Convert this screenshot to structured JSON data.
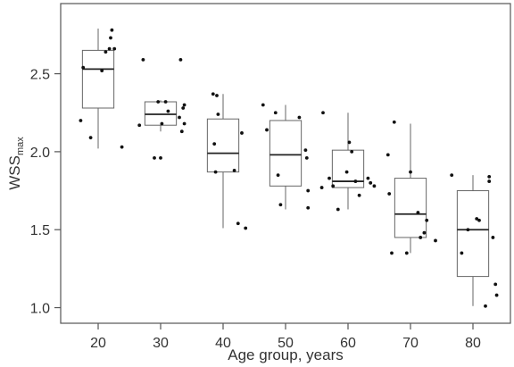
{
  "chart_data": {
    "type": "boxplot",
    "title": "",
    "xlabel": "Age group, years",
    "ylabel": {
      "main": "WSS",
      "subscript": "max"
    },
    "ylim": [
      0.9,
      2.95
    ],
    "xlim": [
      14,
      86
    ],
    "yticks": [
      1.0,
      1.5,
      2.0,
      2.5
    ],
    "ytick_labels": [
      "1.0",
      "1.5",
      "2.0",
      "2.5"
    ],
    "xticks": [
      20,
      30,
      40,
      50,
      60,
      70,
      80
    ],
    "xtick_labels": [
      "20",
      "30",
      "40",
      "50",
      "60",
      "70",
      "80"
    ],
    "grid": false,
    "groups": [
      {
        "x": 20,
        "q1": 2.28,
        "median": 2.53,
        "q3": 2.65,
        "whisker_low": 2.02,
        "whisker_high": 2.79,
        "points": [
          [
            17.2,
            2.2
          ],
          [
            17.6,
            2.54
          ],
          [
            18.8,
            2.09
          ],
          [
            20.6,
            2.52
          ],
          [
            21.2,
            2.64
          ],
          [
            21.8,
            2.66
          ],
          [
            22.0,
            2.73
          ],
          [
            22.2,
            2.78
          ],
          [
            22.6,
            2.66
          ],
          [
            23.8,
            2.03
          ]
        ]
      },
      {
        "x": 30,
        "q1": 2.17,
        "median": 2.24,
        "q3": 2.32,
        "whisker_low": 2.13,
        "whisker_high": 2.33,
        "points": [
          [
            26.6,
            2.17
          ],
          [
            27.2,
            2.59
          ],
          [
            29.0,
            1.96
          ],
          [
            29.6,
            2.32
          ],
          [
            30.0,
            1.96
          ],
          [
            30.2,
            2.18
          ],
          [
            30.8,
            2.32
          ],
          [
            31.2,
            2.26
          ],
          [
            33.0,
            2.22
          ],
          [
            33.2,
            2.59
          ],
          [
            33.4,
            2.13
          ],
          [
            33.6,
            2.28
          ],
          [
            33.8,
            2.18
          ],
          [
            33.8,
            2.3
          ]
        ]
      },
      {
        "x": 40,
        "q1": 1.87,
        "median": 1.99,
        "q3": 2.21,
        "whisker_low": 1.51,
        "whisker_high": 2.37,
        "points": [
          [
            38.4,
            2.37
          ],
          [
            38.6,
            2.05
          ],
          [
            38.8,
            1.87
          ],
          [
            39.0,
            2.36
          ],
          [
            39.2,
            2.24
          ],
          [
            41.8,
            1.88
          ],
          [
            42.4,
            1.54
          ],
          [
            43.0,
            2.12
          ],
          [
            43.6,
            1.51
          ]
        ]
      },
      {
        "x": 50,
        "q1": 1.78,
        "median": 1.98,
        "q3": 2.2,
        "whisker_low": 1.63,
        "whisker_high": 2.3,
        "points": [
          [
            46.4,
            2.3
          ],
          [
            47.0,
            2.14
          ],
          [
            48.4,
            2.25
          ],
          [
            48.8,
            1.85
          ],
          [
            49.2,
            1.66
          ],
          [
            52.2,
            2.22
          ],
          [
            53.2,
            2.01
          ],
          [
            53.4,
            1.96
          ],
          [
            53.6,
            1.75
          ],
          [
            53.6,
            1.64
          ]
        ]
      },
      {
        "x": 60,
        "q1": 1.77,
        "median": 1.81,
        "q3": 2.01,
        "whisker_low": 1.63,
        "whisker_high": 2.25,
        "points": [
          [
            55.8,
            1.77
          ],
          [
            56.0,
            2.25
          ],
          [
            57.0,
            1.83
          ],
          [
            57.6,
            1.78
          ],
          [
            58.4,
            1.63
          ],
          [
            59.8,
            1.87
          ],
          [
            60.2,
            2.06
          ],
          [
            60.6,
            2.0
          ],
          [
            61.2,
            1.81
          ],
          [
            61.8,
            1.72
          ],
          [
            63.2,
            1.83
          ],
          [
            63.6,
            1.8
          ],
          [
            64.2,
            1.78
          ]
        ]
      },
      {
        "x": 70,
        "q1": 1.45,
        "median": 1.6,
        "q3": 1.83,
        "whisker_low": 1.35,
        "whisker_high": 2.18,
        "points": [
          [
            66.4,
            1.98
          ],
          [
            66.6,
            1.73
          ],
          [
            67.0,
            1.35
          ],
          [
            67.4,
            2.19
          ],
          [
            69.4,
            1.35
          ],
          [
            70.0,
            1.87
          ],
          [
            71.2,
            1.61
          ],
          [
            71.6,
            1.45
          ],
          [
            72.2,
            1.48
          ],
          [
            72.6,
            1.56
          ],
          [
            74.0,
            1.43
          ]
        ]
      },
      {
        "x": 80,
        "q1": 1.2,
        "median": 1.5,
        "q3": 1.75,
        "whisker_low": 1.01,
        "whisker_high": 1.85,
        "points": [
          [
            76.6,
            1.85
          ],
          [
            78.2,
            1.35
          ],
          [
            79.2,
            1.5
          ],
          [
            80.6,
            1.57
          ],
          [
            81.0,
            1.56
          ],
          [
            82.0,
            1.01
          ],
          [
            82.6,
            1.84
          ],
          [
            82.6,
            1.81
          ],
          [
            83.2,
            1.45
          ],
          [
            83.6,
            1.15
          ],
          [
            83.8,
            1.08
          ]
        ]
      }
    ]
  }
}
